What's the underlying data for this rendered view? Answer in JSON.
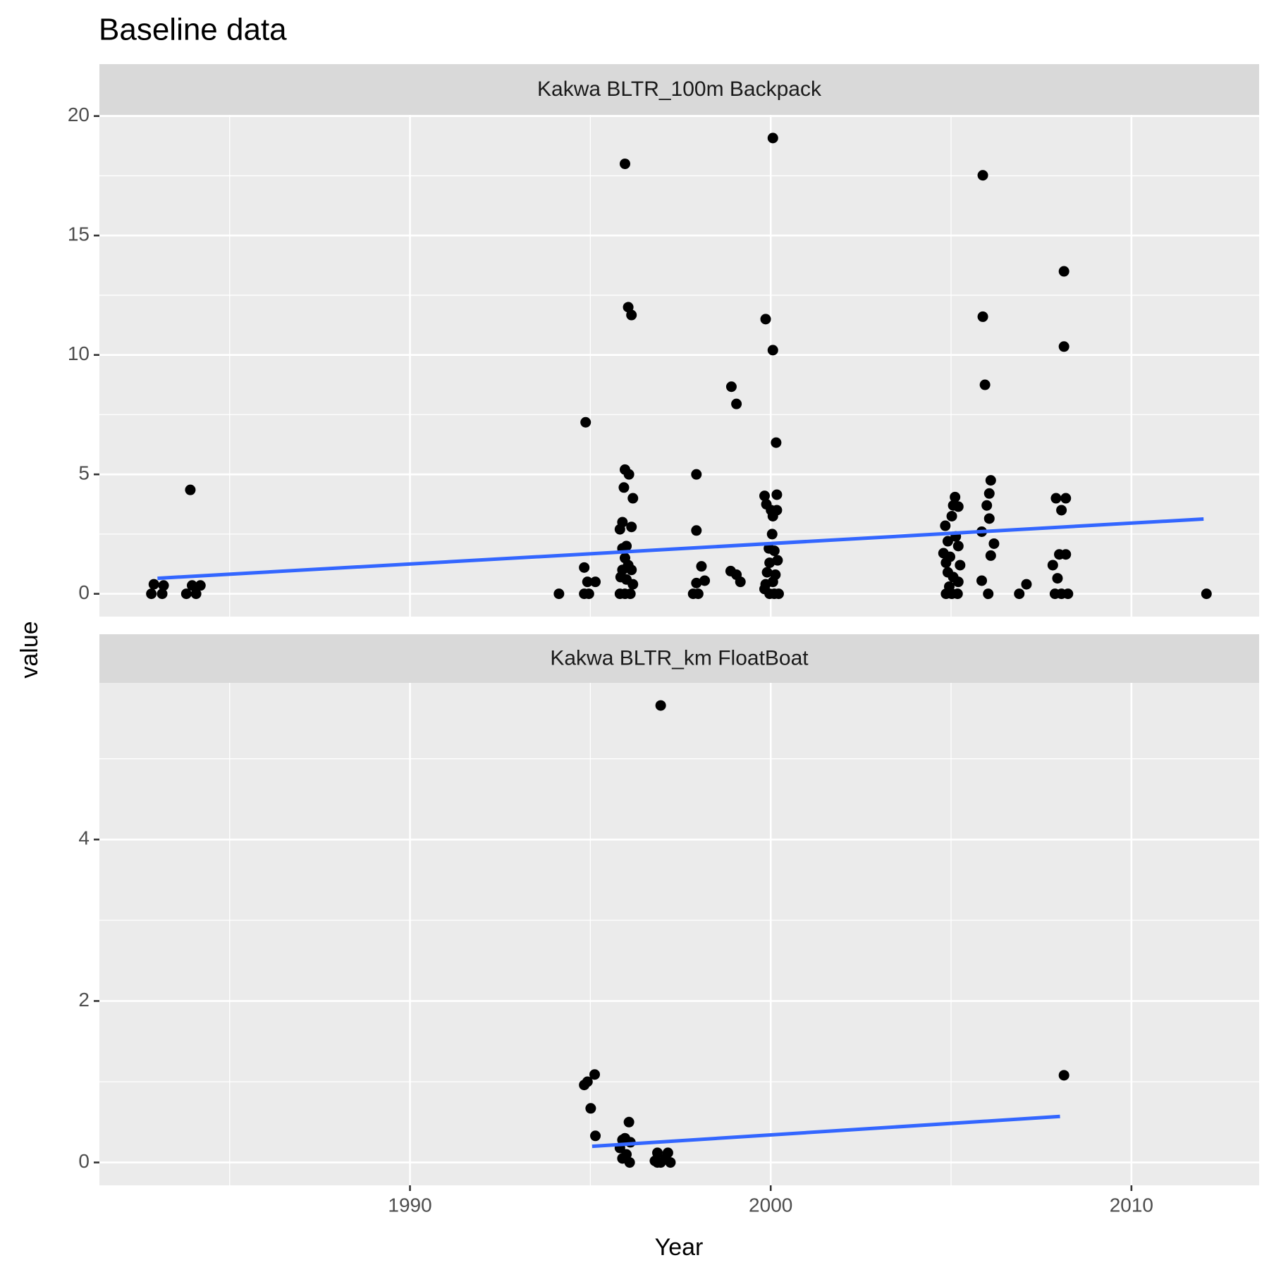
{
  "chart_data": [
    {
      "type": "scatter",
      "title": "Baseline data",
      "y_label": "value",
      "strip": "Kakwa   BLTR_100m   Backpack",
      "color": "#000000",
      "grid": true,
      "xlim": [
        1981.39,
        2013.54
      ],
      "xticks": [
        1990,
        2000,
        2010
      ],
      "x_minor_ticks": [
        1985,
        1995,
        2005
      ],
      "ylim": [
        -0.955,
        20.05
      ],
      "yticks": [
        0,
        5,
        10,
        15,
        20
      ],
      "y_minor_ticks": [
        2.5,
        7.5,
        12.5,
        17.5
      ],
      "x": [
        1982.83,
        1982.9,
        1983.13,
        1983.17,
        1983.8,
        1983.91,
        1983.96,
        1984.07,
        1984.19,
        1994.13,
        1994.87,
        1994.83,
        1994.83,
        1994.92,
        1994.96,
        1995.14,
        1995.96,
        1996.05,
        1996.14,
        1995.96,
        1996.07,
        1995.93,
        1996.18,
        1995.89,
        1995.82,
        1996.14,
        1996.0,
        1995.89,
        1995.96,
        1996.05,
        1995.89,
        1996.14,
        1995.84,
        1996.0,
        1996.18,
        1995.82,
        1995.96,
        1996.11,
        1997.94,
        1997.94,
        1998.08,
        1997.94,
        1998.17,
        1997.85,
        1997.99,
        1998.91,
        1999.05,
        1998.89,
        1999.05,
        1999.16,
        2000.06,
        1999.86,
        2000.06,
        2000.15,
        1999.83,
        2000.17,
        1999.88,
        2000.01,
        2000.17,
        2000.06,
        2000.04,
        1999.95,
        2000.1,
        1999.97,
        2000.19,
        1999.9,
        2000.13,
        1999.86,
        2000.06,
        1999.83,
        1999.97,
        2000.1,
        2000.22,
        2004.84,
        2005.02,
        2005.11,
        2005.06,
        2005.2,
        2004.91,
        2005.13,
        2005.2,
        2004.79,
        2004.97,
        2004.86,
        2005.25,
        2004.91,
        2005.06,
        2005.2,
        2004.95,
        2004.86,
        2005.02,
        2005.18,
        2005.88,
        2005.88,
        2005.94,
        2006.1,
        2006.06,
        2005.99,
        2006.06,
        2005.85,
        2006.19,
        2006.1,
        2005.85,
        2006.03,
        2006.89,
        2007.09,
        2008.13,
        2008.13,
        2007.91,
        2008.18,
        2008.06,
        2008.0,
        2008.18,
        2007.82,
        2007.95,
        2007.88,
        2008.06,
        2008.24,
        2012.08
      ],
      "y": [
        0,
        0.4,
        0,
        0.35,
        0,
        4.35,
        0.35,
        0,
        0.35,
        0,
        7.18,
        1.1,
        0,
        0.5,
        0,
        0.5,
        18,
        12,
        11.67,
        5.2,
        5,
        4.45,
        4,
        3,
        2.7,
        2.8,
        2,
        1.9,
        1.5,
        1.2,
        1,
        1,
        0.7,
        0.6,
        0.4,
        0,
        0,
        0,
        5,
        2.65,
        1.15,
        0.45,
        0.55,
        0,
        0,
        8.67,
        7.95,
        0.95,
        0.8,
        0.5,
        19.08,
        11.5,
        10.2,
        6.33,
        4.1,
        4.15,
        3.75,
        3.5,
        3.5,
        3.25,
        2.5,
        1.9,
        1.8,
        1.3,
        1.4,
        0.9,
        0.8,
        0.4,
        0.5,
        0.2,
        0,
        0,
        0,
        2.85,
        3.25,
        4.05,
        3.7,
        3.65,
        2.2,
        2.4,
        2,
        1.7,
        1.55,
        1.3,
        1.2,
        0.9,
        0.7,
        0.5,
        0.3,
        0,
        0,
        0,
        17.52,
        11.6,
        8.75,
        4.75,
        4.2,
        3.7,
        3.15,
        2.6,
        2.1,
        1.6,
        0.55,
        0,
        0,
        0.4,
        13.5,
        10.35,
        4,
        4,
        3.5,
        1.65,
        1.65,
        1.2,
        0.65,
        0,
        0,
        0,
        0
      ],
      "fit": {
        "color": "#3366ff",
        "x": [
          1983.0,
          2012.0
        ],
        "y": [
          0.65,
          3.13
        ]
      }
    },
    {
      "type": "scatter",
      "x_label": "Year",
      "strip": "Kakwa   BLTR_km   FloatBoat",
      "color": "#000000",
      "grid": true,
      "xlim": [
        1981.39,
        2013.54
      ],
      "xticks": [
        1990,
        2000,
        2010
      ],
      "x_minor_ticks": [
        1985,
        1995,
        2005
      ],
      "ylim": [
        -0.283,
        5.94
      ],
      "yticks": [
        0,
        2,
        4
      ],
      "y_minor_ticks": [
        1,
        3,
        5
      ],
      "x": [
        1996.95,
        1994.83,
        1994.92,
        1995.12,
        1995.01,
        1995.14,
        1995.82,
        1995.89,
        1995.96,
        1996.07,
        1996.0,
        1996.11,
        1995.89,
        1996.09,
        1996.79,
        1996.86,
        1996.95,
        1997.08,
        1997.15,
        1997.22,
        1996.86,
        2008.13
      ],
      "y": [
        5.66,
        0.96,
        1,
        1.09,
        0.67,
        0.33,
        0.18,
        0.28,
        0.3,
        0.5,
        0.1,
        0.25,
        0.05,
        0,
        0.02,
        0.12,
        0,
        0.05,
        0.12,
        0,
        0,
        1.08
      ],
      "fit": {
        "color": "#3366ff",
        "x": [
          1995.05,
          2008.02
        ],
        "y": [
          0.2,
          0.57
        ]
      }
    }
  ]
}
